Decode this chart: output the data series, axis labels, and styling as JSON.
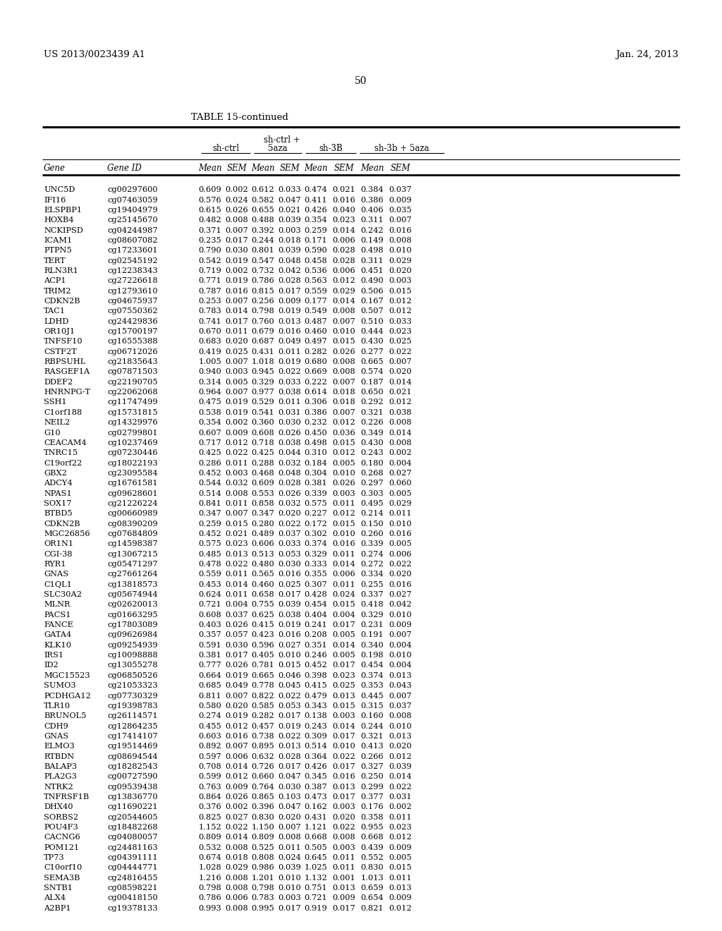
{
  "header_left": "US 2013/0023439 A1",
  "header_right": "Jan. 24, 2013",
  "page_number": "50",
  "table_title": "TABLE 15-continued",
  "rows": [
    [
      "UNC5D",
      "cg00297600",
      "0.609",
      "0.002",
      "0.612",
      "0.033",
      "0.474",
      "0.021",
      "0.384",
      "0.037"
    ],
    [
      "IFI16",
      "cg07463059",
      "0.576",
      "0.024",
      "0.582",
      "0.047",
      "0.411",
      "0.016",
      "0.386",
      "0.009"
    ],
    [
      "ELSPBP1",
      "cg19404979",
      "0.615",
      "0.026",
      "0.655",
      "0.021",
      "0.426",
      "0.040",
      "0.406",
      "0.035"
    ],
    [
      "HOXB4",
      "cg25145670",
      "0.482",
      "0.008",
      "0.488",
      "0.039",
      "0.354",
      "0.023",
      "0.311",
      "0.007"
    ],
    [
      "NCKIPSD",
      "cg04244987",
      "0.371",
      "0.007",
      "0.392",
      "0.003",
      "0.259",
      "0.014",
      "0.242",
      "0.016"
    ],
    [
      "ICAM1",
      "cg08607082",
      "0.235",
      "0.017",
      "0.244",
      "0.018",
      "0.171",
      "0.006",
      "0.149",
      "0.008"
    ],
    [
      "PTPN5",
      "cg17233601",
      "0.790",
      "0.030",
      "0.801",
      "0.039",
      "0.590",
      "0.028",
      "0.498",
      "0.010"
    ],
    [
      "TERT",
      "cg02545192",
      "0.542",
      "0.019",
      "0.547",
      "0.048",
      "0.458",
      "0.028",
      "0.311",
      "0.029"
    ],
    [
      "RLN3R1",
      "cg12238343",
      "0.719",
      "0.002",
      "0.732",
      "0.042",
      "0.536",
      "0.006",
      "0.451",
      "0.020"
    ],
    [
      "ACP1",
      "cg27226618",
      "0.771",
      "0.019",
      "0.786",
      "0.028",
      "0.563",
      "0.012",
      "0.490",
      "0.003"
    ],
    [
      "TRIM2",
      "cg12793610",
      "0.787",
      "0.016",
      "0.815",
      "0.017",
      "0.559",
      "0.029",
      "0.506",
      "0.015"
    ],
    [
      "CDKN2B",
      "cg04675937",
      "0.253",
      "0.007",
      "0.256",
      "0.009",
      "0.177",
      "0.014",
      "0.167",
      "0.012"
    ],
    [
      "TAC1",
      "cg07550362",
      "0.783",
      "0.014",
      "0.798",
      "0.019",
      "0.549",
      "0.008",
      "0.507",
      "0.012"
    ],
    [
      "LDHD",
      "cg24429836",
      "0.741",
      "0.017",
      "0.760",
      "0.013",
      "0.487",
      "0.007",
      "0.510",
      "0.033"
    ],
    [
      "OR10J1",
      "cg15700197",
      "0.670",
      "0.011",
      "0.679",
      "0.016",
      "0.460",
      "0.010",
      "0.444",
      "0.023"
    ],
    [
      "TNFSF10",
      "cg16555388",
      "0.683",
      "0.020",
      "0.687",
      "0.049",
      "0.497",
      "0.015",
      "0.430",
      "0.025"
    ],
    [
      "CSTF2T",
      "cg06712026",
      "0.419",
      "0.025",
      "0.431",
      "0.011",
      "0.282",
      "0.026",
      "0.277",
      "0.022"
    ],
    [
      "RBPSUHL",
      "cg21835643",
      "1.005",
      "0.007",
      "1.018",
      "0.019",
      "0.680",
      "0.008",
      "0.665",
      "0.007"
    ],
    [
      "RASGEF1A",
      "cg07871503",
      "0.940",
      "0.003",
      "0.945",
      "0.022",
      "0.669",
      "0.008",
      "0.574",
      "0.020"
    ],
    [
      "DDEF2",
      "cg22190705",
      "0.314",
      "0.005",
      "0.329",
      "0.033",
      "0.222",
      "0.007",
      "0.187",
      "0.014"
    ],
    [
      "HNRNPG-T",
      "cg22062068",
      "0.964",
      "0.007",
      "0.977",
      "0.038",
      "0.614",
      "0.018",
      "0.650",
      "0.021"
    ],
    [
      "SSH1",
      "cg11747499",
      "0.475",
      "0.019",
      "0.529",
      "0.011",
      "0.306",
      "0.018",
      "0.292",
      "0.012"
    ],
    [
      "C1orf188",
      "cg15731815",
      "0.538",
      "0.019",
      "0.541",
      "0.031",
      "0.386",
      "0.007",
      "0.321",
      "0.038"
    ],
    [
      "NEIL2",
      "cg14329976",
      "0.354",
      "0.002",
      "0.360",
      "0.030",
      "0.232",
      "0.012",
      "0.226",
      "0.008"
    ],
    [
      "G10",
      "cg02799801",
      "0.607",
      "0.009",
      "0.608",
      "0.026",
      "0.450",
      "0.036",
      "0.349",
      "0.014"
    ],
    [
      "CEACAM4",
      "cg10237469",
      "0.717",
      "0.012",
      "0.718",
      "0.038",
      "0.498",
      "0.015",
      "0.430",
      "0.008"
    ],
    [
      "TNRC15",
      "cg07230446",
      "0.425",
      "0.022",
      "0.425",
      "0.044",
      "0.310",
      "0.012",
      "0.243",
      "0.002"
    ],
    [
      "C19orf22",
      "cg18022193",
      "0.286",
      "0.011",
      "0.288",
      "0.032",
      "0.184",
      "0.005",
      "0.180",
      "0.004"
    ],
    [
      "GBX2",
      "cg23095584",
      "0.452",
      "0.003",
      "0.468",
      "0.048",
      "0.304",
      "0.010",
      "0.268",
      "0.027"
    ],
    [
      "ADCY4",
      "cg16761581",
      "0.544",
      "0.032",
      "0.609",
      "0.028",
      "0.381",
      "0.026",
      "0.297",
      "0.060"
    ],
    [
      "NPAS1",
      "cg09628601",
      "0.514",
      "0.008",
      "0.553",
      "0.026",
      "0.339",
      "0.003",
      "0.303",
      "0.005"
    ],
    [
      "SOX17",
      "cg21226224",
      "0.841",
      "0.011",
      "0.858",
      "0.032",
      "0.575",
      "0.011",
      "0.495",
      "0.029"
    ],
    [
      "BTBD5",
      "cg00660989",
      "0.347",
      "0.007",
      "0.347",
      "0.020",
      "0.227",
      "0.012",
      "0.214",
      "0.011"
    ],
    [
      "CDKN2B",
      "cg08390209",
      "0.259",
      "0.015",
      "0.280",
      "0.022",
      "0.172",
      "0.015",
      "0.150",
      "0.010"
    ],
    [
      "MGC26856",
      "cg07684809",
      "0.452",
      "0.021",
      "0.489",
      "0.037",
      "0.302",
      "0.010",
      "0.260",
      "0.016"
    ],
    [
      "OR1N1",
      "cg14598387",
      "0.575",
      "0.023",
      "0.606",
      "0.033",
      "0.374",
      "0.016",
      "0.339",
      "0.005"
    ],
    [
      "CGI-38",
      "cg13067215",
      "0.485",
      "0.013",
      "0.513",
      "0.053",
      "0.329",
      "0.011",
      "0.274",
      "0.006"
    ],
    [
      "RYR1",
      "cg05471297",
      "0.478",
      "0.022",
      "0.480",
      "0.030",
      "0.333",
      "0.014",
      "0.272",
      "0.022"
    ],
    [
      "GNAS",
      "cg27661264",
      "0.559",
      "0.011",
      "0.565",
      "0.016",
      "0.355",
      "0.006",
      "0.334",
      "0.020"
    ],
    [
      "C1QL1",
      "cg13818573",
      "0.453",
      "0.014",
      "0.460",
      "0.025",
      "0.307",
      "0.011",
      "0.255",
      "0.016"
    ],
    [
      "SLC30A2",
      "cg05674944",
      "0.624",
      "0.011",
      "0.658",
      "0.017",
      "0.428",
      "0.024",
      "0.337",
      "0.027"
    ],
    [
      "MLNR",
      "cg02620013",
      "0.721",
      "0.004",
      "0.755",
      "0.039",
      "0.454",
      "0.015",
      "0.418",
      "0.042"
    ],
    [
      "PACS1",
      "cg01663295",
      "0.608",
      "0.037",
      "0.625",
      "0.038",
      "0.404",
      "0.004",
      "0.329",
      "0.010"
    ],
    [
      "FANCE",
      "cg17803089",
      "0.403",
      "0.026",
      "0.415",
      "0.019",
      "0.241",
      "0.017",
      "0.231",
      "0.009"
    ],
    [
      "GATA4",
      "cg09626984",
      "0.357",
      "0.057",
      "0.423",
      "0.016",
      "0.208",
      "0.005",
      "0.191",
      "0.007"
    ],
    [
      "KLK10",
      "cg09254939",
      "0.591",
      "0.030",
      "0.596",
      "0.027",
      "0.351",
      "0.014",
      "0.340",
      "0.004"
    ],
    [
      "IRS1",
      "cg10098888",
      "0.381",
      "0.017",
      "0.405",
      "0.010",
      "0.246",
      "0.005",
      "0.198",
      "0.010"
    ],
    [
      "ID2",
      "cg13055278",
      "0.777",
      "0.026",
      "0.781",
      "0.015",
      "0.452",
      "0.017",
      "0.454",
      "0.004"
    ],
    [
      "MGC15523",
      "cg06850526",
      "0.664",
      "0.019",
      "0.665",
      "0.046",
      "0.398",
      "0.023",
      "0.374",
      "0.013"
    ],
    [
      "SUMO3",
      "cg21053323",
      "0.685",
      "0.049",
      "0.778",
      "0.045",
      "0.415",
      "0.025",
      "0.353",
      "0.043"
    ],
    [
      "PCDHGA12",
      "cg07730329",
      "0.811",
      "0.007",
      "0.822",
      "0.022",
      "0.479",
      "0.013",
      "0.445",
      "0.007"
    ],
    [
      "TLR10",
      "cg19398783",
      "0.580",
      "0.020",
      "0.585",
      "0.053",
      "0.343",
      "0.015",
      "0.315",
      "0.037"
    ],
    [
      "BRUNOL5",
      "cg26114571",
      "0.274",
      "0.019",
      "0.282",
      "0.017",
      "0.138",
      "0.003",
      "0.160",
      "0.008"
    ],
    [
      "CDH9",
      "cg12864235",
      "0.455",
      "0.012",
      "0.457",
      "0.019",
      "0.243",
      "0.014",
      "0.244",
      "0.010"
    ],
    [
      "GNAS",
      "cg17414107",
      "0.603",
      "0.016",
      "0.738",
      "0.022",
      "0.309",
      "0.017",
      "0.321",
      "0.013"
    ],
    [
      "ELMO3",
      "cg19514469",
      "0.892",
      "0.007",
      "0.895",
      "0.013",
      "0.514",
      "0.010",
      "0.413",
      "0.020"
    ],
    [
      "RTBDN",
      "cg08694544",
      "0.597",
      "0.006",
      "0.632",
      "0.028",
      "0.364",
      "0.022",
      "0.266",
      "0.012"
    ],
    [
      "BALAP3",
      "cg18282543",
      "0.708",
      "0.014",
      "0.726",
      "0.017",
      "0.426",
      "0.017",
      "0.327",
      "0.039"
    ],
    [
      "PLA2G3",
      "cg00727590",
      "0.599",
      "0.012",
      "0.660",
      "0.047",
      "0.345",
      "0.016",
      "0.250",
      "0.014"
    ],
    [
      "NTRK2",
      "cg09539438",
      "0.763",
      "0.009",
      "0.764",
      "0.030",
      "0.387",
      "0.013",
      "0.299",
      "0.022"
    ],
    [
      "TNFRSF1B",
      "cg13836770",
      "0.864",
      "0.026",
      "0.865",
      "0.103",
      "0.473",
      "0.017",
      "0.377",
      "0.031"
    ],
    [
      "DHX40",
      "cg11690221",
      "0.376",
      "0.002",
      "0.396",
      "0.047",
      "0.162",
      "0.003",
      "0.176",
      "0.002"
    ],
    [
      "SORBS2",
      "cg20544605",
      "0.825",
      "0.027",
      "0.830",
      "0.020",
      "0.431",
      "0.020",
      "0.358",
      "0.011"
    ],
    [
      "POU4F3",
      "cg18482268",
      "1.152",
      "0.022",
      "1.150",
      "0.007",
      "1.121",
      "0.022",
      "0.955",
      "0.023"
    ],
    [
      "CACNG6",
      "cg04080057",
      "0.809",
      "0.014",
      "0.809",
      "0.008",
      "0.668",
      "0.008",
      "0.668",
      "0.012"
    ],
    [
      "POM121",
      "cg24481163",
      "0.532",
      "0.008",
      "0.525",
      "0.011",
      "0.505",
      "0.003",
      "0.439",
      "0.009"
    ],
    [
      "TP73",
      "cg04391111",
      "0.674",
      "0.018",
      "0.808",
      "0.024",
      "0.645",
      "0.011",
      "0.552",
      "0.005"
    ],
    [
      "C10orf10",
      "cg04444771",
      "1.028",
      "0.029",
      "0.986",
      "0.039",
      "1.025",
      "0.011",
      "0.830",
      "0.015"
    ],
    [
      "SEMA3B",
      "cg24816455",
      "1.216",
      "0.008",
      "1.201",
      "0.010",
      "1.132",
      "0.001",
      "1.013",
      "0.011"
    ],
    [
      "SNTB1",
      "cg08598221",
      "0.798",
      "0.008",
      "0.798",
      "0.010",
      "0.751",
      "0.013",
      "0.659",
      "0.013"
    ],
    [
      "ALX4",
      "cg00418150",
      "0.786",
      "0.006",
      "0.783",
      "0.003",
      "0.721",
      "0.009",
      "0.654",
      "0.009"
    ],
    [
      "A2BP1",
      "cg19378133",
      "0.993",
      "0.008",
      "0.995",
      "0.017",
      "0.919",
      "0.017",
      "0.821",
      "0.012"
    ]
  ],
  "fig_width": 10.24,
  "fig_height": 13.2,
  "dpi": 100,
  "font_size_header": 9.5,
  "font_size_data": 8.2,
  "font_size_title": 9.5,
  "font_size_page": 10,
  "bg_color": "#ffffff",
  "text_color": "#000000"
}
